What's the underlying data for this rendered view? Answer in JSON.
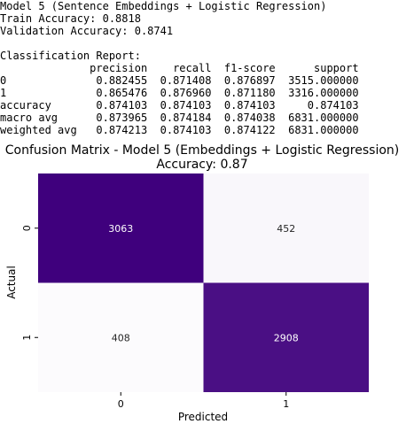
{
  "console": {
    "lines": [
      "Model 5 (Sentence Embeddings + Logistic Regression)",
      "Train Accuracy: 0.8818",
      "Validation Accuracy: 0.8741",
      "",
      "Classification Report:",
      "              precision    recall  f1-score      support",
      "0              0.882455  0.871408  0.876897  3515.000000",
      "1              0.865476  0.876960  0.871180  3316.000000",
      "accuracy       0.874103  0.874103  0.874103     0.874103",
      "macro avg      0.873965  0.874184  0.874038  6831.000000",
      "weighted avg   0.874213  0.874103  0.874122  6831.000000"
    ]
  },
  "chart_data": {
    "type": "heatmap",
    "title": "Confusion Matrix - Model 5 (Embeddings + Logistic Regression)",
    "subtitle": "Accuracy: 0.87",
    "xlabel": "Predicted",
    "ylabel": "Actual",
    "x_categories": [
      "0",
      "1"
    ],
    "y_categories": [
      "0",
      "1"
    ],
    "values": [
      [
        3063,
        452
      ],
      [
        408,
        2908
      ]
    ],
    "colormap": "Purples",
    "colorbar": false,
    "value_labels": [
      "3063",
      "452",
      "408",
      "2908"
    ],
    "low_color": "#fcfbfd",
    "high_color": "#3f007d"
  }
}
